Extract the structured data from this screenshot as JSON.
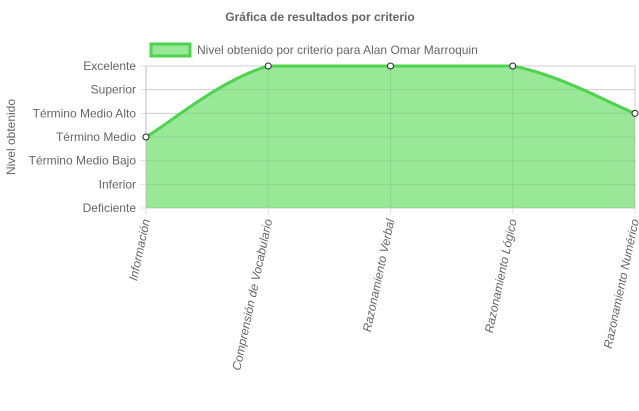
{
  "chart_data": {
    "type": "area",
    "title": "Gráfica de resultados por criterio",
    "ylabel": "Nivel obtenido",
    "xlabel": "",
    "y_levels": [
      "Deficiente",
      "Inferior",
      "Término Medio Bajo",
      "Término Medio",
      "Término Medio Alto",
      "Superior",
      "Excelente"
    ],
    "ylim": [
      0,
      6
    ],
    "categories": [
      "Información",
      "Comprensión de Vocabulario",
      "Razonamiento Verbal",
      "Razonamiento Lógico",
      "Razonamiento Numérico"
    ],
    "series": [
      {
        "name": "Nivel obtenido por criterio para Alan Omar Marroquin",
        "values": [
          3,
          6,
          6,
          6,
          4
        ],
        "value_labels": [
          "Término Medio",
          "Excelente",
          "Excelente",
          "Excelente",
          "Término Medio Alto"
        ],
        "line_color": "#4cd44c",
        "fill_color": "#98e898"
      }
    ],
    "grid": true,
    "legend_position": "top"
  }
}
